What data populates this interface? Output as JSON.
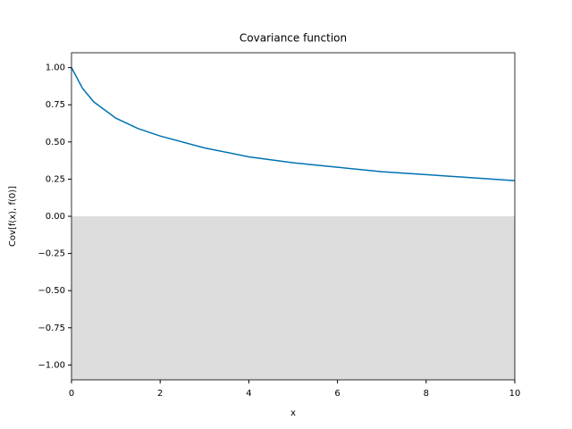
{
  "chart_data": {
    "type": "line",
    "title": "Covariance function",
    "x_label": "x",
    "y_label": "Cov[f(x), f(0)]",
    "x": [
      0,
      0.25,
      0.5,
      1,
      1.5,
      2,
      3,
      4,
      5,
      6,
      7,
      8,
      9,
      10
    ],
    "series": [
      {
        "color": "#0072b2",
        "values": [
          1.0,
          0.86,
          0.77,
          0.66,
          0.59,
          0.54,
          0.46,
          0.4,
          0.36,
          0.33,
          0.3,
          0.28,
          0.26,
          0.24
        ]
      }
    ],
    "shade": {
      "from": -1.1,
      "to": 0,
      "color": "#dddddd"
    },
    "xlim": [
      0,
      10
    ],
    "ylim": [
      -1.1,
      1.1
    ],
    "xticks": [
      0,
      2,
      4,
      6,
      8,
      10
    ],
    "yticks": [
      {
        "value": -1,
        "label": "−1.00"
      },
      {
        "value": -0.75,
        "label": "−0.75"
      },
      {
        "value": -0.5,
        "label": "−0.50"
      },
      {
        "value": -0.25,
        "label": "−0.25"
      },
      {
        "value": 0,
        "label": "0.00"
      },
      {
        "value": 0.25,
        "label": "0.25"
      },
      {
        "value": 0.5,
        "label": "0.50"
      },
      {
        "value": 0.75,
        "label": "0.75"
      },
      {
        "value": 1,
        "label": "1.00"
      }
    ]
  }
}
